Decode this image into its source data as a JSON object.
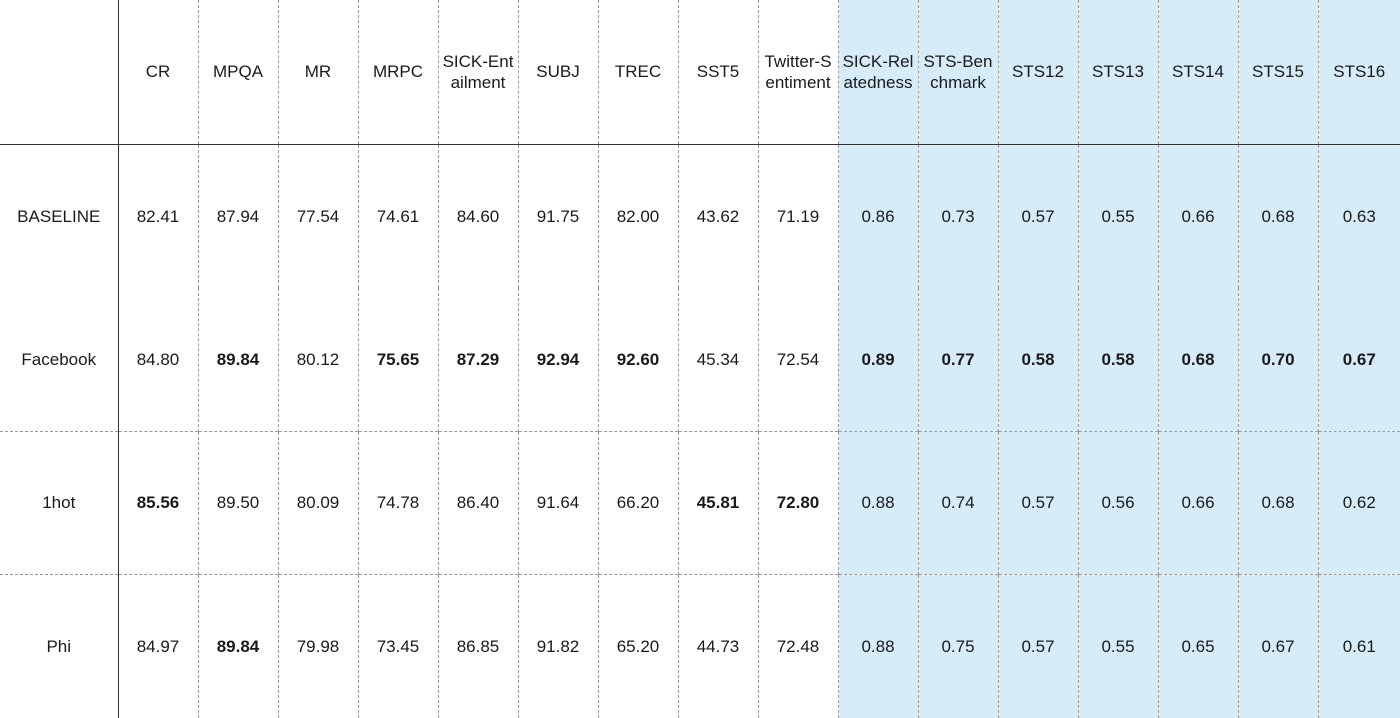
{
  "table": {
    "corner": "",
    "columns": [
      {
        "label": "CR",
        "group": "transfer"
      },
      {
        "label": "MPQA",
        "group": "transfer"
      },
      {
        "label": "MR",
        "group": "transfer"
      },
      {
        "label": "MRPC",
        "group": "transfer"
      },
      {
        "label": "SICK-Entailment",
        "group": "transfer"
      },
      {
        "label": "SUBJ",
        "group": "transfer"
      },
      {
        "label": "TREC",
        "group": "transfer"
      },
      {
        "label": "SST5",
        "group": "transfer"
      },
      {
        "label": "Twitter-Sentiment",
        "group": "transfer"
      },
      {
        "label": "SICK-Relatedness",
        "group": "similarity"
      },
      {
        "label": "STS-Benchmark",
        "group": "similarity"
      },
      {
        "label": "STS12",
        "group": "similarity"
      },
      {
        "label": "STS13",
        "group": "similarity"
      },
      {
        "label": "STS14",
        "group": "similarity"
      },
      {
        "label": "STS15",
        "group": "similarity"
      },
      {
        "label": "STS16",
        "group": "similarity"
      }
    ],
    "rows": [
      {
        "label": "BASELINE",
        "values": [
          "82.41",
          "87.94",
          "77.54",
          "74.61",
          "84.60",
          "91.75",
          "82.00",
          "43.62",
          "71.19",
          "0.86",
          "0.73",
          "0.57",
          "0.55",
          "0.66",
          "0.68",
          "0.63"
        ],
        "best": []
      },
      {
        "label": "Facebook",
        "values": [
          "84.80",
          "89.84",
          "80.12",
          "75.65",
          "87.29",
          "92.94",
          "92.60",
          "45.34",
          "72.54",
          "0.89",
          "0.77",
          "0.58",
          "0.58",
          "0.68",
          "0.70",
          "0.67"
        ],
        "best": [
          1,
          3,
          4,
          5,
          6,
          9,
          10,
          11,
          12,
          13,
          14,
          15
        ]
      },
      {
        "label": "1hot",
        "values": [
          "85.56",
          "89.50",
          "80.09",
          "74.78",
          "86.40",
          "91.64",
          "66.20",
          "45.81",
          "72.80",
          "0.88",
          "0.74",
          "0.57",
          "0.56",
          "0.66",
          "0.68",
          "0.62"
        ],
        "best": [
          0,
          7,
          8
        ]
      },
      {
        "label": "Phi",
        "values": [
          "84.97",
          "89.84",
          "79.98",
          "73.45",
          "86.85",
          "91.82",
          "65.20",
          "44.73",
          "72.48",
          "0.88",
          "0.75",
          "0.57",
          "0.55",
          "0.65",
          "0.67",
          "0.61"
        ],
        "best": [
          1
        ]
      }
    ],
    "highlight_color": "#d6ecf8"
  }
}
